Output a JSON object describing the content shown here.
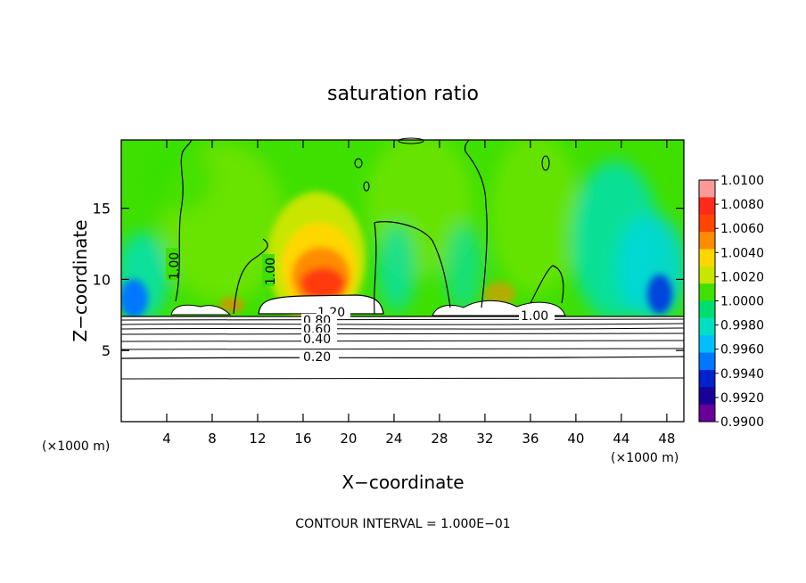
{
  "chart_data": {
    "type": "heatmap",
    "title": "saturation ratio",
    "xlabel": "X−coordinate",
    "ylabel": "Z−coordinate",
    "x_unit": "(×1000 m)",
    "x_unit_right": "(×1000 m)",
    "footer": "CONTOUR INTERVAL = 1.000E−01",
    "xlim": [
      0,
      49.5
    ],
    "ylim": [
      0,
      19.8
    ],
    "x_ticks": [
      "4",
      "8",
      "12",
      "16",
      "20",
      "24",
      "28",
      "32",
      "36",
      "40",
      "44",
      "48"
    ],
    "y_ticks": [
      "5",
      "10",
      "15"
    ],
    "colorbar": {
      "labels": [
        "1.0100",
        "1.0080",
        "1.0060",
        "1.0040",
        "1.0020",
        "1.0000",
        "0.9980",
        "0.9960",
        "0.9940",
        "0.9920",
        "0.9900"
      ],
      "range": [
        0.99,
        1.01
      ],
      "colors": [
        "#ff9999",
        "#ff2a1a",
        "#ff4500",
        "#ff8c00",
        "#ffd700",
        "#c8e600",
        "#40e000",
        "#00dd70",
        "#00e0c0",
        "#00bfff",
        "#0077ff",
        "#0022cc",
        "#1a0099",
        "#660099"
      ]
    },
    "contour_labels": [
      "1.00",
      "1.00",
      "1.00",
      "1.20",
      "0.80",
      "0.60",
      "0.40",
      "0.20"
    ],
    "contour_levels": [
      0.2,
      0.4,
      0.6,
      0.8,
      1.0,
      1.2
    ],
    "regions": [
      {
        "name": "background upper troposphere",
        "value": 1.0005
      },
      {
        "name": "supersaturated core",
        "x_center": 18,
        "z_center": 11.5,
        "value": 1.008
      },
      {
        "name": "subsaturated left edge",
        "x_center": 1.5,
        "z_center": 9,
        "value": 0.994
      },
      {
        "name": "subsaturated right edge",
        "x_center": 47.5,
        "z_center": 9.5,
        "value": 0.993
      },
      {
        "name": "dry lower layer",
        "z_range": [
          0,
          7.5
        ],
        "value": "below 1.00 (white, contoured)"
      }
    ]
  }
}
